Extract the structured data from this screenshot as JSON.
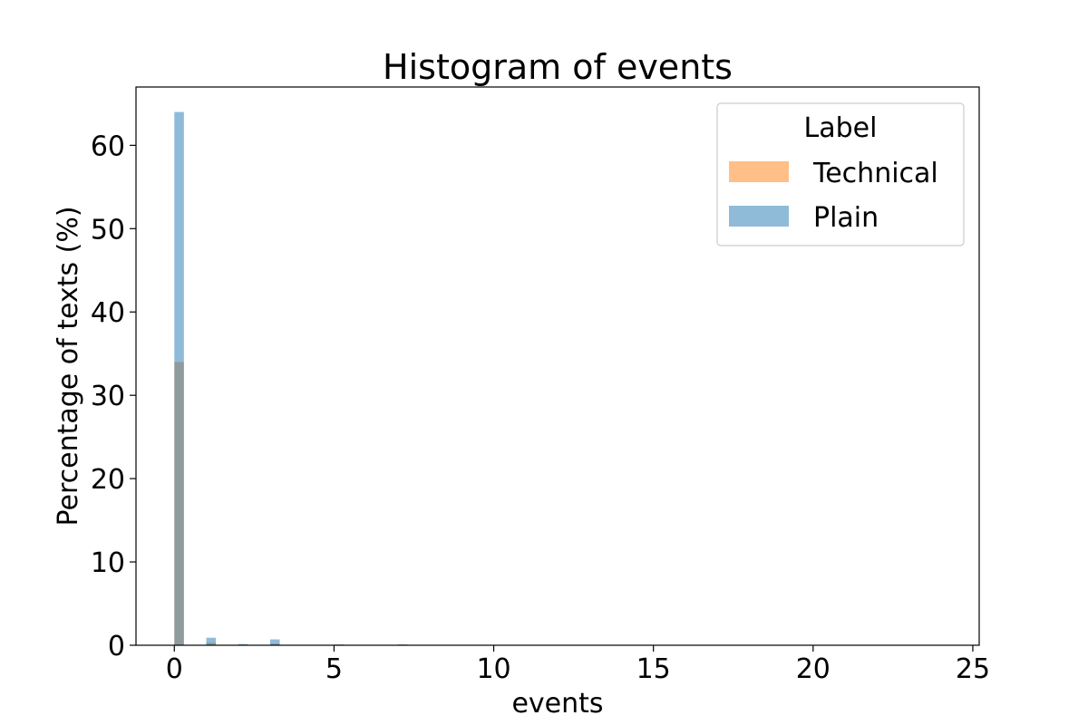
{
  "chart_data": {
    "type": "bar",
    "title": "Histogram of events",
    "xlabel": "events",
    "ylabel": "Percentage of texts (%)",
    "xlim": [
      -1.2,
      25.2
    ],
    "ylim": [
      0,
      67
    ],
    "xticks": [
      0,
      5,
      10,
      15,
      20,
      25
    ],
    "yticks": [
      0,
      10,
      20,
      30,
      40,
      50,
      60
    ],
    "bin_width": 0.3,
    "grid": false,
    "legend": {
      "title": "Label",
      "placement": "top-right",
      "entries": [
        "Technical",
        "Plain"
      ]
    },
    "series": [
      {
        "name": "Technical",
        "color": "#ff7f0e",
        "opacity": 0.5,
        "bins": [
          {
            "x": 0.0,
            "value": 34.0
          },
          {
            "x": 1.0,
            "value": 0.3
          },
          {
            "x": 3.0,
            "value": 0.2
          }
        ]
      },
      {
        "name": "Plain",
        "color": "#1f77b4",
        "opacity": 0.5,
        "bins": [
          {
            "x": 0.0,
            "value": 64.0
          },
          {
            "x": 1.0,
            "value": 0.9
          },
          {
            "x": 2.0,
            "value": 0.15
          },
          {
            "x": 3.0,
            "value": 0.7
          },
          {
            "x": 5.0,
            "value": 0.1
          },
          {
            "x": 7.0,
            "value": 0.1
          }
        ]
      }
    ]
  }
}
